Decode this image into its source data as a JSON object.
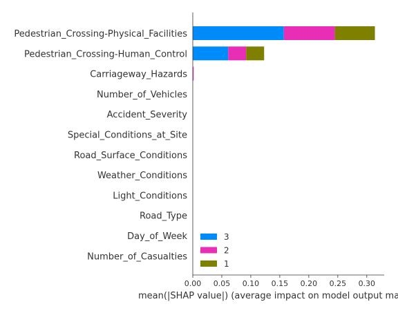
{
  "chart_data": {
    "type": "bar",
    "orientation": "horizontal",
    "stacked": true,
    "categories": [
      "Pedestrian_Crossing-Physical_Facilities",
      "Pedestrian_Crossing-Human_Control",
      "Carriageway_Hazards",
      "Number_of_Vehicles",
      "Accident_Severity",
      "Special_Conditions_at_Site",
      "Road_Surface_Conditions",
      "Weather_Conditions",
      "Light_Conditions",
      "Road_Type",
      "Day_of_Week",
      "Number_of_Casualties"
    ],
    "series": [
      {
        "name": "3",
        "color": "#008bfb",
        "values": [
          0.157,
          0.061,
          0.0,
          0,
          0,
          0,
          0,
          0,
          0,
          0,
          0,
          0
        ]
      },
      {
        "name": "2",
        "color": "#e92eb6",
        "values": [
          0.088,
          0.031,
          0.0015,
          0,
          0,
          0,
          0,
          0,
          0,
          0,
          0,
          0
        ]
      },
      {
        "name": "1",
        "color": "#808000",
        "values": [
          0.069,
          0.031,
          0.0,
          0,
          0,
          0,
          0,
          0,
          0,
          0,
          0,
          0
        ]
      }
    ],
    "xlabel": "mean(|SHAP value|) (average impact on model output magnitude)",
    "xlim": [
      0,
      0.33
    ],
    "xticks": [
      "0.00",
      "0.05",
      "0.10",
      "0.15",
      "0.20",
      "0.25",
      "0.30"
    ],
    "xtick_values": [
      0,
      0.05,
      0.1,
      0.15,
      0.2,
      0.25,
      0.3
    ],
    "legend_order": [
      "3",
      "2",
      "1"
    ],
    "legend_position": "lower-left",
    "grid": false
  }
}
